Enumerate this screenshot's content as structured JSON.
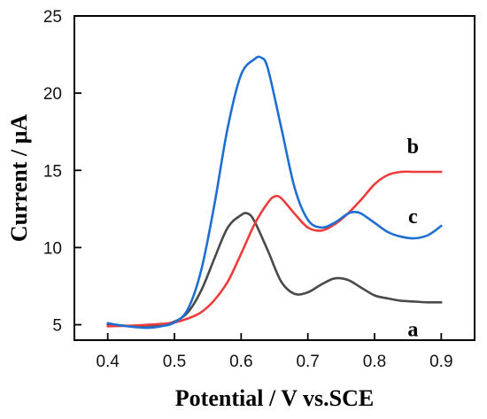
{
  "chart_data": {
    "type": "line",
    "xlabel": "Potential / V vs.SCE",
    "ylabel": "Current / μA",
    "xlim": [
      0.35,
      0.95
    ],
    "ylim": [
      4,
      25
    ],
    "xticks": [
      0.4,
      0.5,
      0.6,
      0.7,
      0.8,
      0.9
    ],
    "yticks": [
      5,
      10,
      15,
      20,
      25
    ],
    "grid": false,
    "series": [
      {
        "name": "a",
        "color": "#4a4a4a",
        "x": [
          0.4,
          0.42,
          0.44,
          0.46,
          0.48,
          0.5,
          0.52,
          0.54,
          0.56,
          0.58,
          0.6,
          0.61,
          0.62,
          0.64,
          0.66,
          0.68,
          0.7,
          0.72,
          0.74,
          0.76,
          0.78,
          0.8,
          0.82,
          0.84,
          0.86,
          0.88,
          0.9
        ],
        "y": [
          5.0,
          4.95,
          4.92,
          4.95,
          5.0,
          5.2,
          5.8,
          7.2,
          9.3,
          11.3,
          12.1,
          12.2,
          11.7,
          9.8,
          7.8,
          7.0,
          7.1,
          7.6,
          8.0,
          7.9,
          7.4,
          6.9,
          6.7,
          6.55,
          6.5,
          6.45,
          6.45
        ]
      },
      {
        "name": "b",
        "color": "#ee3c3c",
        "x": [
          0.4,
          0.42,
          0.44,
          0.46,
          0.48,
          0.5,
          0.52,
          0.54,
          0.56,
          0.58,
          0.6,
          0.62,
          0.64,
          0.65,
          0.66,
          0.68,
          0.7,
          0.72,
          0.74,
          0.76,
          0.78,
          0.8,
          0.82,
          0.84,
          0.86,
          0.88,
          0.9
        ],
        "y": [
          4.9,
          4.92,
          4.95,
          5.0,
          5.05,
          5.15,
          5.4,
          5.8,
          6.6,
          7.8,
          9.6,
          11.5,
          12.9,
          13.3,
          13.2,
          12.2,
          11.3,
          11.1,
          11.5,
          12.2,
          13.1,
          14.1,
          14.7,
          14.9,
          14.9,
          14.9,
          14.9
        ]
      },
      {
        "name": "c",
        "color": "#1f6fd1",
        "x": [
          0.4,
          0.42,
          0.44,
          0.46,
          0.48,
          0.5,
          0.52,
          0.54,
          0.56,
          0.58,
          0.6,
          0.62,
          0.63,
          0.64,
          0.66,
          0.68,
          0.7,
          0.72,
          0.74,
          0.76,
          0.77,
          0.78,
          0.8,
          0.82,
          0.84,
          0.86,
          0.88,
          0.9
        ],
        "y": [
          5.1,
          4.95,
          4.85,
          4.8,
          4.9,
          5.15,
          6.0,
          8.5,
          12.8,
          17.8,
          21.2,
          22.2,
          22.3,
          21.6,
          17.8,
          13.9,
          11.8,
          11.3,
          11.6,
          12.2,
          12.3,
          12.2,
          11.6,
          11.0,
          10.7,
          10.6,
          10.8,
          11.4
        ]
      }
    ]
  }
}
